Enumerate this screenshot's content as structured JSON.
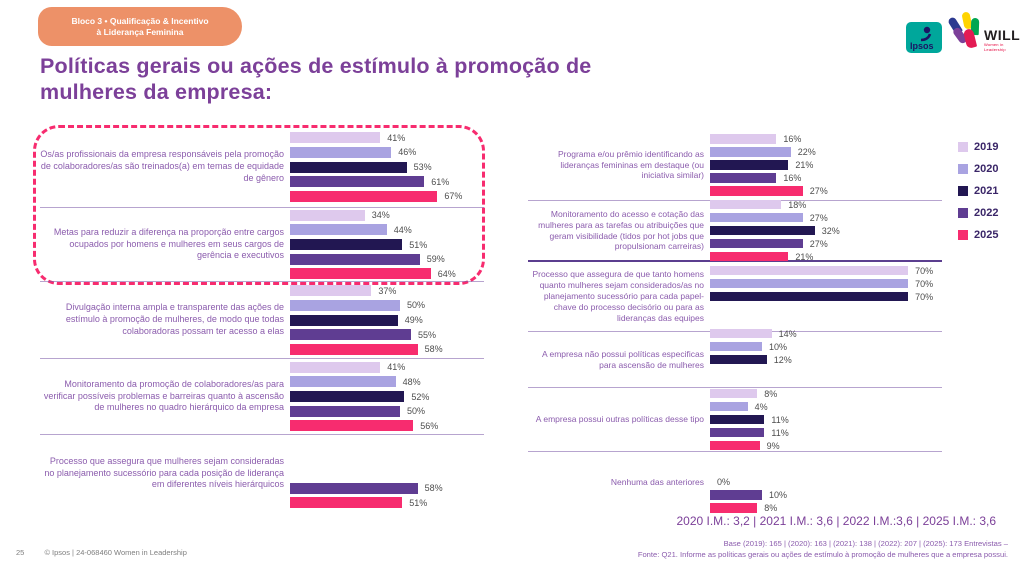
{
  "header": {
    "badge_line1": "Bloco 3 • Qualificação & Incentivo",
    "badge_line2": "à Liderança Feminina",
    "title_line1": "Políticas gerais ou ações de estímulo à promoção de",
    "title_line2": "mulheres da empresa:"
  },
  "logos": {
    "ipsos": "Ipsos",
    "will": "WILL",
    "will_subtitle": "Women in Leadership"
  },
  "legend": {
    "items": [
      {
        "label": "2019",
        "color": "#DEC9ED"
      },
      {
        "label": "2020",
        "color": "#A9A3E1"
      },
      {
        "label": "2021",
        "color": "#221752"
      },
      {
        "label": "2022",
        "color": "#5F3D92"
      },
      {
        "label": "2025",
        "color": "#F72C6F"
      }
    ]
  },
  "chart_data": {
    "type": "bar",
    "orientation": "horizontal",
    "unit": "%",
    "legend_position": "right",
    "title": "Políticas gerais ou ações de estímulo à promoção de mulheres da empresa:",
    "years": [
      "2019",
      "2020",
      "2021",
      "2022",
      "2025"
    ],
    "colors": {
      "2019": "#DEC9ED",
      "2020": "#A9A3E1",
      "2021": "#221752",
      "2022": "#5F3D92",
      "2025": "#F72C6F"
    },
    "highlight_border_color": "#F72C6F",
    "columns": [
      {
        "id": "left",
        "groups": [
          {
            "label": "Os/as profissionais da empresa responsáveis pela promoção de colaboradores/as são treinados(a) em temas de equidade de gênero",
            "highlighted": true,
            "bars": [
              {
                "year": "2019",
                "value": 41
              },
              {
                "year": "2020",
                "value": 46
              },
              {
                "year": "2021",
                "value": 53
              },
              {
                "year": "2022",
                "value": 61
              },
              {
                "year": "2025",
                "value": 67
              }
            ]
          },
          {
            "label": "Metas para reduzir a diferença na proporção entre cargos ocupados por homens e mulheres em seus cargos de gerência e executivos",
            "highlighted": true,
            "bars": [
              {
                "year": "2019",
                "value": 34
              },
              {
                "year": "2020",
                "value": 44
              },
              {
                "year": "2021",
                "value": 51
              },
              {
                "year": "2022",
                "value": 59
              },
              {
                "year": "2025",
                "value": 64
              }
            ]
          },
          {
            "label": "Divulgação interna ampla e transparente das ações de estímulo à promoção de mulheres, de modo que todas colaboradoras possam ter acesso a elas",
            "highlighted": false,
            "bars": [
              {
                "year": "2019",
                "value": 37
              },
              {
                "year": "2020",
                "value": 50
              },
              {
                "year": "2021",
                "value": 49
              },
              {
                "year": "2022",
                "value": 55
              },
              {
                "year": "2025",
                "value": 58
              }
            ]
          },
          {
            "label": "Monitoramento da promoção de colaboradores/as para verificar possíveis problemas e barreiras quanto à ascensão de mulheres no quadro hierárquico da empresa",
            "highlighted": false,
            "bars": [
              {
                "year": "2019",
                "value": 41
              },
              {
                "year": "2020",
                "value": 48
              },
              {
                "year": "2021",
                "value": 52
              },
              {
                "year": "2022",
                "value": 50
              },
              {
                "year": "2025",
                "value": 56
              }
            ]
          },
          {
            "label": "Processo que assegura que mulheres sejam consideradas no planejamento sucessório para cada posição de liderança em diferentes níveis hierárquicos",
            "highlighted": false,
            "bars": [
              {
                "year": "2022",
                "value": 58
              },
              {
                "year": "2025",
                "value": 51
              }
            ]
          }
        ]
      },
      {
        "id": "right",
        "groups": [
          {
            "label": "Programa e/ou prêmio identificando as lideranças femininas em destaque (ou iniciativa similar)",
            "highlighted": false,
            "bars": [
              {
                "year": "2019",
                "value": 16
              },
              {
                "year": "2020",
                "value": 22
              },
              {
                "year": "2021",
                "value": 21
              },
              {
                "year": "2022",
                "value": 16
              },
              {
                "year": "2025",
                "value": 27
              }
            ]
          },
          {
            "label": "Monitoramento do acesso e cotação das mulheres para as tarefas ou atribuições que geram visibilidade (tidos por hot jobs que propulsionam carreiras)",
            "highlighted": false,
            "bars": [
              {
                "year": "2019",
                "value": 18
              },
              {
                "year": "2020",
                "value": 27
              },
              {
                "year": "2021",
                "value": 32
              },
              {
                "year": "2022",
                "value": 27
              },
              {
                "year": "2025",
                "value": 21
              }
            ]
          },
          {
            "label": "Processo que assegura de que tanto homens quanto mulheres sejam considerados/as no planejamento sucessório para cada papel-chave do processo decisório ou para as lideranças das equipes",
            "highlighted": false,
            "bars": [
              {
                "year": "2019",
                "value": 70
              },
              {
                "year": "2020",
                "value": 70
              },
              {
                "year": "2021",
                "value": 70
              }
            ]
          },
          {
            "label": "A empresa não possui políticas especificas para ascensão de mulheres",
            "highlighted": false,
            "bars": [
              {
                "year": "2019",
                "value": 14
              },
              {
                "year": "2020",
                "value": 10
              },
              {
                "year": "2021",
                "value": 12
              }
            ]
          },
          {
            "label": "A empresa possui outras políticas desse tipo",
            "highlighted": false,
            "bars": [
              {
                "year": "2019",
                "value": 8
              },
              {
                "year": "2020",
                "value": 4
              },
              {
                "year": "2021",
                "value": 11
              },
              {
                "year": "2022",
                "value": 11
              },
              {
                "year": "2025",
                "value": 9
              }
            ]
          },
          {
            "label": "Nenhuma das anteriores",
            "highlighted": false,
            "bars": [
              {
                "year": "2021",
                "value": 0
              },
              {
                "year": "2022",
                "value": 10
              },
              {
                "year": "2025",
                "value": 8
              }
            ]
          }
        ]
      }
    ]
  },
  "footnotes": {
    "im_line": "2020 I.M.: 3,2 | 2021 I.M.: 3,6 | 2022 I.M.:3,6 | 2025 I.M.: 3,6",
    "base_line": "Base (2019): 165 | (2020): 163  | (2021): 138 | (2022): 207 | (2025): 173  Entrevistas –",
    "fonte_line": "Fonte: Q21. Informe as políticas gerais ou ações de estímulo à promoção de mulheres que a empresa possui."
  },
  "footer": {
    "page_number": "25",
    "copyright": "© Ipsos | 24-068460 Women in Leadership"
  }
}
